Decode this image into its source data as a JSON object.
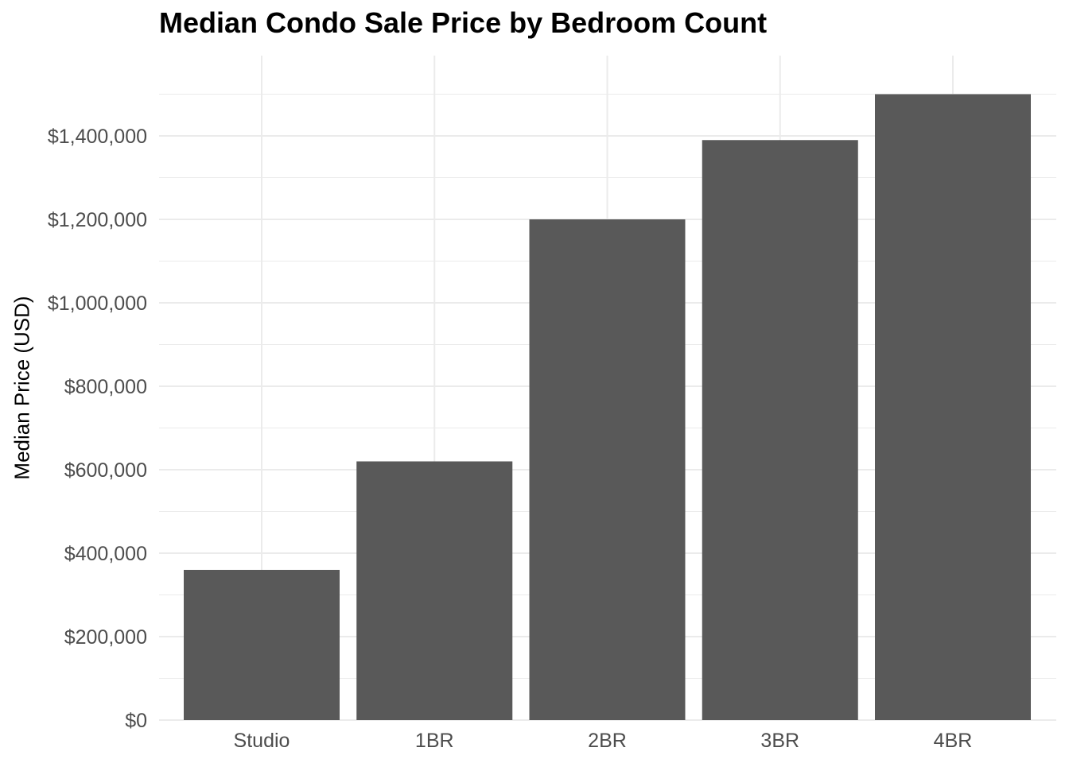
{
  "chart_data": {
    "type": "bar",
    "title": "Median Condo Sale Price by Bedroom Count",
    "xlabel": "",
    "ylabel": "Median Price (USD)",
    "categories": [
      "Studio",
      "1BR",
      "2BR",
      "3BR",
      "4BR"
    ],
    "values": [
      360000,
      620000,
      1200000,
      1390000,
      1500000
    ],
    "ylim": [
      0,
      1500000
    ],
    "yticks": [
      0,
      200000,
      400000,
      600000,
      800000,
      1000000,
      1200000,
      1400000
    ],
    "ytick_labels": [
      "$0",
      "$200,000",
      "$400,000",
      "$600,000",
      "$800,000",
      "$1,000,000",
      "$1,200,000",
      "$1,400,000"
    ],
    "grid": true,
    "legend": "none",
    "colors": {
      "bar": "#595959",
      "grid": "#ebebeb",
      "tick_text": "#4d4d4d",
      "title_text": "#000000"
    }
  }
}
